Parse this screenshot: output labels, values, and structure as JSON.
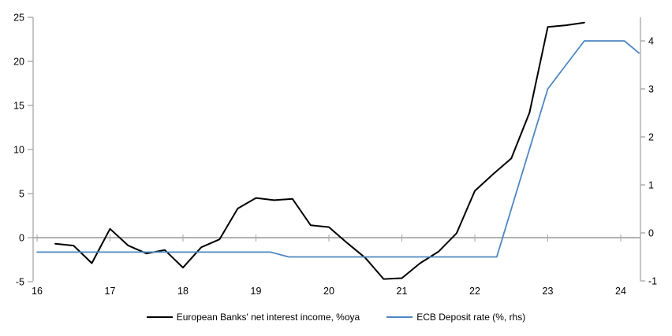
{
  "chart_data": {
    "type": "line",
    "title": "",
    "x_axis": {
      "min": 15.95,
      "max": 24.3,
      "ticks": [
        16,
        17,
        18,
        19,
        20,
        21,
        22,
        23,
        24
      ],
      "labels": [
        "16",
        "17",
        "18",
        "19",
        "20",
        "21",
        "22",
        "23",
        "24"
      ]
    },
    "left_axis": {
      "min": -5,
      "max": 25,
      "ticks": [
        -5,
        0,
        5,
        10,
        15,
        20,
        25
      ],
      "labels": [
        "-5",
        "0",
        "5",
        "10",
        "15",
        "20",
        "25"
      ]
    },
    "right_axis": {
      "min": -1,
      "max": 4.5,
      "ticks": [
        -1,
        0,
        1,
        2,
        3,
        4
      ],
      "labels": [
        "-1",
        "0",
        "1",
        "2",
        "3",
        "4"
      ]
    },
    "gridlines": "zero-line-only",
    "legend_position": "bottom",
    "series": [
      {
        "name": "European Banks' net interest income, %oya",
        "axis": "left",
        "color": "#000000",
        "stroke_width": 2,
        "points": [
          [
            16.25,
            -0.7
          ],
          [
            16.5,
            -0.9
          ],
          [
            16.75,
            -2.9
          ],
          [
            17.0,
            1.0
          ],
          [
            17.25,
            -0.9
          ],
          [
            17.5,
            -1.8
          ],
          [
            17.75,
            -1.4
          ],
          [
            18.0,
            -3.4
          ],
          [
            18.25,
            -1.1
          ],
          [
            18.5,
            -0.2
          ],
          [
            18.75,
            3.3
          ],
          [
            19.0,
            4.5
          ],
          [
            19.25,
            4.25
          ],
          [
            19.5,
            4.4
          ],
          [
            19.75,
            1.4
          ],
          [
            20.0,
            1.2
          ],
          [
            20.25,
            -0.6
          ],
          [
            20.5,
            -2.3
          ],
          [
            20.75,
            -4.7
          ],
          [
            21.0,
            -4.6
          ],
          [
            21.25,
            -2.9
          ],
          [
            21.5,
            -1.6
          ],
          [
            21.75,
            0.5
          ],
          [
            22.0,
            5.3
          ],
          [
            22.25,
            7.2
          ],
          [
            22.5,
            9.0
          ],
          [
            22.75,
            14.2
          ],
          [
            23.0,
            23.9
          ],
          [
            23.25,
            24.1
          ],
          [
            23.5,
            24.4
          ]
        ]
      },
      {
        "name": "ECB Deposit rate (%, rhs)",
        "axis": "right",
        "color": "#4E87C3",
        "stroke_width": 1.8,
        "points": [
          [
            16.0,
            -0.4
          ],
          [
            19.2,
            -0.4
          ],
          [
            19.45,
            -0.5
          ],
          [
            22.3,
            -0.5
          ],
          [
            23.0,
            3.0
          ],
          [
            23.25,
            3.5
          ],
          [
            23.5,
            4.0
          ],
          [
            24.05,
            4.0
          ],
          [
            24.25,
            3.75
          ]
        ]
      }
    ],
    "colors": {
      "axis_line": "#A6A6A6",
      "zero_line": "#A6A6A6",
      "tick_label": "#000000"
    }
  },
  "legend": {
    "items": [
      {
        "label": "European Banks' net interest income, %oya",
        "color": "#000000"
      },
      {
        "label": "ECB Deposit rate (%, rhs)",
        "color": "#4E87C3"
      }
    ]
  }
}
